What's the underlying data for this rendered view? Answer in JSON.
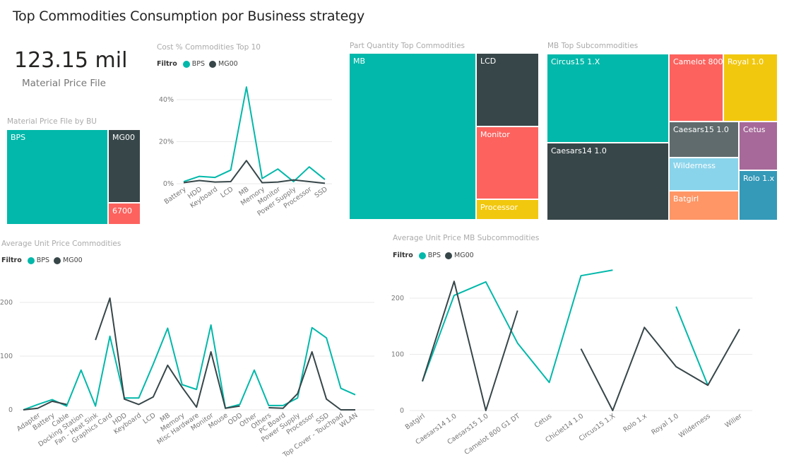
{
  "header": {
    "title": "Top Commodities Consumption por Business strategy"
  },
  "kpi": {
    "value": "123.15 mil",
    "label": "Material Price File"
  },
  "colors": {
    "bps": "#01B8AA",
    "mg00": "#374649",
    "red": "#FD625E",
    "yellow": "#F2C80F",
    "gray": "#5F6B6D",
    "lightblue": "#8AD4EB",
    "orange": "#FE9666",
    "purple": "#A66999",
    "blue": "#3599B8"
  },
  "legend": {
    "title": "Filtro",
    "items": [
      "BPS",
      "MG00"
    ]
  },
  "bu_treemap": {
    "title": "Material Price File by BU",
    "tiles": [
      "BPS",
      "MG00",
      "6700"
    ]
  },
  "part_quantity_treemap": {
    "title": "Part Quantity Top Commodities",
    "tiles": [
      "MB",
      "LCD",
      "Monitor",
      "Processor"
    ]
  },
  "mb_treemap": {
    "title": "MB Top Subcommodities",
    "tiles": [
      "Circus15 1.X",
      "Caesars14 1.0",
      "Camelot 800...",
      "Royal 1.0",
      "Caesars15 1.0",
      "Cetus",
      "Wilderness",
      "Rolo 1.x",
      "Batgirl"
    ]
  },
  "chart_data": [
    {
      "type": "line",
      "title": "Cost % Commodities Top 10",
      "categories": [
        "Battery",
        "HDD",
        "Keyboard",
        "LCD",
        "MB",
        "Memory",
        "Monitor",
        "Power Supply",
        "Processor",
        "SSD"
      ],
      "series": [
        {
          "name": "BPS",
          "values": [
            1,
            3.5,
            3,
            6.5,
            46,
            2.5,
            7,
            1,
            8,
            2
          ]
        },
        {
          "name": "MG00",
          "values": [
            0.5,
            1.5,
            0.8,
            1,
            11,
            0.5,
            0.8,
            1.8,
            1,
            0.2
          ]
        }
      ],
      "yticks": [
        0,
        20,
        40
      ],
      "ytick_labels": [
        "0%",
        "20%",
        "40%"
      ],
      "ylim": [
        0,
        40
      ]
    },
    {
      "type": "line",
      "title": "Average Unit Price Commodities",
      "categories": [
        "",
        "Adapter",
        "Battery",
        "Cable",
        "Docking Station",
        "Fan - Heat Sink",
        "Graphics Card",
        "HDD",
        "Keyboard",
        "LCD",
        "MB",
        "Memory",
        "Misc Hardware",
        "Monitor",
        "Mouse",
        "ODD",
        "Other",
        "Others",
        "PC Board",
        "Power Supply",
        "Processor",
        "SSD",
        "Top Cover - Touchpad",
        "WLAN"
      ],
      "series": [
        {
          "name": "BPS",
          "values": [
            0,
            10,
            19,
            7,
            74,
            7,
            137,
            22,
            22,
            85,
            152,
            47,
            38,
            158,
            3,
            10,
            74,
            8,
            8,
            22,
            153,
            134,
            40,
            28
          ]
        },
        {
          "name": "MG00",
          "values": [
            0,
            3,
            16,
            10,
            null,
            130,
            208,
            20,
            10,
            24,
            83,
            42,
            5,
            108,
            3,
            7,
            null,
            4,
            3,
            30,
            108,
            20,
            0,
            0
          ]
        }
      ],
      "yticks": [
        0,
        100,
        200
      ],
      "ytick_labels": [
        "0",
        "100",
        "200"
      ],
      "ylim": [
        0,
        200
      ]
    },
    {
      "type": "line",
      "title": "Average Unit Price MB Subcommodities",
      "categories": [
        "Batgirl",
        "Caesars14 1.0",
        "Caesars15 1.0",
        "Camelot 800 G1 DT",
        "Cetus",
        "Chiclet14 1.0",
        "Circus15 1.X",
        "Rolo 1.x",
        "Royal 1.0",
        "Wilderness",
        "Wilier"
      ],
      "series": [
        {
          "name": "BPS",
          "values": [
            52,
            205,
            229,
            120,
            50,
            240,
            250,
            null,
            185,
            45,
            null
          ]
        },
        {
          "name": "MG00",
          "values": [
            52,
            230,
            0,
            178,
            null,
            110,
            0,
            148,
            78,
            45,
            145
          ]
        }
      ],
      "yticks": [
        0,
        100,
        200
      ],
      "ytick_labels": [
        "0",
        "100",
        "200"
      ],
      "ylim": [
        0,
        200
      ]
    }
  ]
}
